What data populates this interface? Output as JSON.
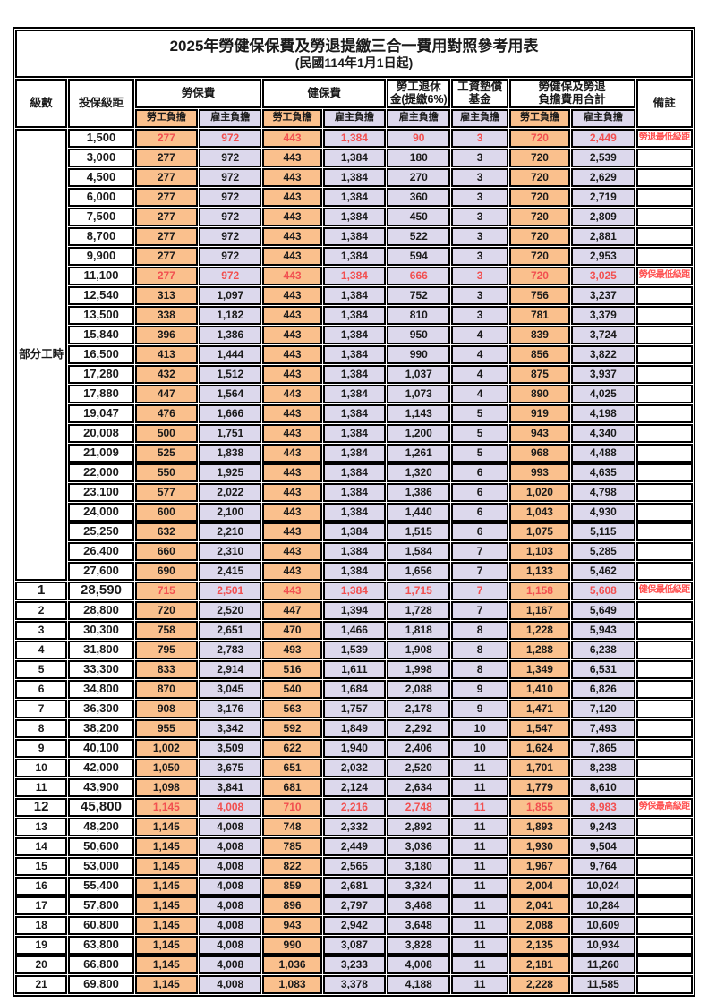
{
  "title": "2025年勞健保保費及勞退提繳三合一費用對照參考用表",
  "subtitle": "(民國114年1月1日起)",
  "columns": {
    "level": "級數",
    "bracket": "投保級距",
    "labor_group": "勞保費",
    "health_group": "健保費",
    "pension_group": [
      "勞工退休",
      "金(提繳6%)"
    ],
    "fund_group": [
      "工資墊償",
      "基金"
    ],
    "total_group": [
      "勞健保及勞退",
      "負擔費用合計"
    ],
    "remark": "備註",
    "employee": "勞工負擔",
    "employer": "雇主負擔"
  },
  "part_time_label": "部分工時",
  "colors": {
    "employee_bg": "#FAC08D",
    "employer_bg": "#DCD8EC",
    "highlight_text": "#F25050",
    "remark_text": "#FF5252",
    "border": "#000000"
  },
  "rows": [
    {
      "level": "",
      "bracket": "1,500",
      "fees": [
        "277",
        "972",
        "443",
        "1,384",
        "90",
        "3",
        "720",
        "2,449"
      ],
      "remark": "勞退最低級距",
      "highlight": true,
      "big": false
    },
    {
      "level": "",
      "bracket": "3,000",
      "fees": [
        "277",
        "972",
        "443",
        "1,384",
        "180",
        "3",
        "720",
        "2,539"
      ],
      "remark": "",
      "highlight": false,
      "big": false
    },
    {
      "level": "",
      "bracket": "4,500",
      "fees": [
        "277",
        "972",
        "443",
        "1,384",
        "270",
        "3",
        "720",
        "2,629"
      ],
      "remark": "",
      "highlight": false,
      "big": false
    },
    {
      "level": "",
      "bracket": "6,000",
      "fees": [
        "277",
        "972",
        "443",
        "1,384",
        "360",
        "3",
        "720",
        "2,719"
      ],
      "remark": "",
      "highlight": false,
      "big": false
    },
    {
      "level": "",
      "bracket": "7,500",
      "fees": [
        "277",
        "972",
        "443",
        "1,384",
        "450",
        "3",
        "720",
        "2,809"
      ],
      "remark": "",
      "highlight": false,
      "big": false
    },
    {
      "level": "",
      "bracket": "8,700",
      "fees": [
        "277",
        "972",
        "443",
        "1,384",
        "522",
        "3",
        "720",
        "2,881"
      ],
      "remark": "",
      "highlight": false,
      "big": false
    },
    {
      "level": "",
      "bracket": "9,900",
      "fees": [
        "277",
        "972",
        "443",
        "1,384",
        "594",
        "3",
        "720",
        "2,953"
      ],
      "remark": "",
      "highlight": false,
      "big": false
    },
    {
      "level": "",
      "bracket": "11,100",
      "fees": [
        "277",
        "972",
        "443",
        "1,384",
        "666",
        "3",
        "720",
        "3,025"
      ],
      "remark": "勞保最低級距",
      "highlight": true,
      "big": false
    },
    {
      "level": "",
      "bracket": "12,540",
      "fees": [
        "313",
        "1,097",
        "443",
        "1,384",
        "752",
        "3",
        "756",
        "3,237"
      ],
      "remark": "",
      "highlight": false,
      "big": false
    },
    {
      "level": "",
      "bracket": "13,500",
      "fees": [
        "338",
        "1,182",
        "443",
        "1,384",
        "810",
        "3",
        "781",
        "3,379"
      ],
      "remark": "",
      "highlight": false,
      "big": false
    },
    {
      "level": "",
      "bracket": "15,840",
      "fees": [
        "396",
        "1,386",
        "443",
        "1,384",
        "950",
        "4",
        "839",
        "3,724"
      ],
      "remark": "",
      "highlight": false,
      "big": false
    },
    {
      "level": "",
      "bracket": "16,500",
      "fees": [
        "413",
        "1,444",
        "443",
        "1,384",
        "990",
        "4",
        "856",
        "3,822"
      ],
      "remark": "",
      "highlight": false,
      "big": false
    },
    {
      "level": "",
      "bracket": "17,280",
      "fees": [
        "432",
        "1,512",
        "443",
        "1,384",
        "1,037",
        "4",
        "875",
        "3,937"
      ],
      "remark": "",
      "highlight": false,
      "big": false
    },
    {
      "level": "",
      "bracket": "17,880",
      "fees": [
        "447",
        "1,564",
        "443",
        "1,384",
        "1,073",
        "4",
        "890",
        "4,025"
      ],
      "remark": "",
      "highlight": false,
      "big": false
    },
    {
      "level": "",
      "bracket": "19,047",
      "fees": [
        "476",
        "1,666",
        "443",
        "1,384",
        "1,143",
        "5",
        "919",
        "4,198"
      ],
      "remark": "",
      "highlight": false,
      "big": false
    },
    {
      "level": "",
      "bracket": "20,008",
      "fees": [
        "500",
        "1,751",
        "443",
        "1,384",
        "1,200",
        "5",
        "943",
        "4,340"
      ],
      "remark": "",
      "highlight": false,
      "big": false
    },
    {
      "level": "",
      "bracket": "21,009",
      "fees": [
        "525",
        "1,838",
        "443",
        "1,384",
        "1,261",
        "5",
        "968",
        "4,488"
      ],
      "remark": "",
      "highlight": false,
      "big": false
    },
    {
      "level": "",
      "bracket": "22,000",
      "fees": [
        "550",
        "1,925",
        "443",
        "1,384",
        "1,320",
        "6",
        "993",
        "4,635"
      ],
      "remark": "",
      "highlight": false,
      "big": false
    },
    {
      "level": "",
      "bracket": "23,100",
      "fees": [
        "577",
        "2,022",
        "443",
        "1,384",
        "1,386",
        "6",
        "1,020",
        "4,798"
      ],
      "remark": "",
      "highlight": false,
      "big": false
    },
    {
      "level": "",
      "bracket": "24,000",
      "fees": [
        "600",
        "2,100",
        "443",
        "1,384",
        "1,440",
        "6",
        "1,043",
        "4,930"
      ],
      "remark": "",
      "highlight": false,
      "big": false
    },
    {
      "level": "",
      "bracket": "25,250",
      "fees": [
        "632",
        "2,210",
        "443",
        "1,384",
        "1,515",
        "6",
        "1,075",
        "5,115"
      ],
      "remark": "",
      "highlight": false,
      "big": false
    },
    {
      "level": "",
      "bracket": "26,400",
      "fees": [
        "660",
        "2,310",
        "443",
        "1,384",
        "1,584",
        "7",
        "1,103",
        "5,285"
      ],
      "remark": "",
      "highlight": false,
      "big": false
    },
    {
      "level": "",
      "bracket": "27,600",
      "fees": [
        "690",
        "2,415",
        "443",
        "1,384",
        "1,656",
        "7",
        "1,133",
        "5,462"
      ],
      "remark": "",
      "highlight": false,
      "big": false
    },
    {
      "level": "1",
      "bracket": "28,590",
      "fees": [
        "715",
        "2,501",
        "443",
        "1,384",
        "1,715",
        "7",
        "1,158",
        "5,608"
      ],
      "remark": "健保最低級距",
      "highlight": true,
      "big": true
    },
    {
      "level": "2",
      "bracket": "28,800",
      "fees": [
        "720",
        "2,520",
        "447",
        "1,394",
        "1,728",
        "7",
        "1,167",
        "5,649"
      ],
      "remark": "",
      "highlight": false,
      "big": false
    },
    {
      "level": "3",
      "bracket": "30,300",
      "fees": [
        "758",
        "2,651",
        "470",
        "1,466",
        "1,818",
        "8",
        "1,228",
        "5,943"
      ],
      "remark": "",
      "highlight": false,
      "big": false
    },
    {
      "level": "4",
      "bracket": "31,800",
      "fees": [
        "795",
        "2,783",
        "493",
        "1,539",
        "1,908",
        "8",
        "1,288",
        "6,238"
      ],
      "remark": "",
      "highlight": false,
      "big": false
    },
    {
      "level": "5",
      "bracket": "33,300",
      "fees": [
        "833",
        "2,914",
        "516",
        "1,611",
        "1,998",
        "8",
        "1,349",
        "6,531"
      ],
      "remark": "",
      "highlight": false,
      "big": false
    },
    {
      "level": "6",
      "bracket": "34,800",
      "fees": [
        "870",
        "3,045",
        "540",
        "1,684",
        "2,088",
        "9",
        "1,410",
        "6,826"
      ],
      "remark": "",
      "highlight": false,
      "big": false
    },
    {
      "level": "7",
      "bracket": "36,300",
      "fees": [
        "908",
        "3,176",
        "563",
        "1,757",
        "2,178",
        "9",
        "1,471",
        "7,120"
      ],
      "remark": "",
      "highlight": false,
      "big": false
    },
    {
      "level": "8",
      "bracket": "38,200",
      "fees": [
        "955",
        "3,342",
        "592",
        "1,849",
        "2,292",
        "10",
        "1,547",
        "7,493"
      ],
      "remark": "",
      "highlight": false,
      "big": false
    },
    {
      "level": "9",
      "bracket": "40,100",
      "fees": [
        "1,002",
        "3,509",
        "622",
        "1,940",
        "2,406",
        "10",
        "1,624",
        "7,865"
      ],
      "remark": "",
      "highlight": false,
      "big": false
    },
    {
      "level": "10",
      "bracket": "42,000",
      "fees": [
        "1,050",
        "3,675",
        "651",
        "2,032",
        "2,520",
        "11",
        "1,701",
        "8,238"
      ],
      "remark": "",
      "highlight": false,
      "big": false
    },
    {
      "level": "11",
      "bracket": "43,900",
      "fees": [
        "1,098",
        "3,841",
        "681",
        "2,124",
        "2,634",
        "11",
        "1,779",
        "8,610"
      ],
      "remark": "",
      "highlight": false,
      "big": false
    },
    {
      "level": "12",
      "bracket": "45,800",
      "fees": [
        "1,145",
        "4,008",
        "710",
        "2,216",
        "2,748",
        "11",
        "1,855",
        "8,983"
      ],
      "remark": "勞保最高級距",
      "highlight": true,
      "big": true
    },
    {
      "level": "13",
      "bracket": "48,200",
      "fees": [
        "1,145",
        "4,008",
        "748",
        "2,332",
        "2,892",
        "11",
        "1,893",
        "9,243"
      ],
      "remark": "",
      "highlight": false,
      "big": false
    },
    {
      "level": "14",
      "bracket": "50,600",
      "fees": [
        "1,145",
        "4,008",
        "785",
        "2,449",
        "3,036",
        "11",
        "1,930",
        "9,504"
      ],
      "remark": "",
      "highlight": false,
      "big": false
    },
    {
      "level": "15",
      "bracket": "53,000",
      "fees": [
        "1,145",
        "4,008",
        "822",
        "2,565",
        "3,180",
        "11",
        "1,967",
        "9,764"
      ],
      "remark": "",
      "highlight": false,
      "big": false
    },
    {
      "level": "16",
      "bracket": "55,400",
      "fees": [
        "1,145",
        "4,008",
        "859",
        "2,681",
        "3,324",
        "11",
        "2,004",
        "10,024"
      ],
      "remark": "",
      "highlight": false,
      "big": false
    },
    {
      "level": "17",
      "bracket": "57,800",
      "fees": [
        "1,145",
        "4,008",
        "896",
        "2,797",
        "3,468",
        "11",
        "2,041",
        "10,284"
      ],
      "remark": "",
      "highlight": false,
      "big": false
    },
    {
      "level": "18",
      "bracket": "60,800",
      "fees": [
        "1,145",
        "4,008",
        "943",
        "2,942",
        "3,648",
        "11",
        "2,088",
        "10,609"
      ],
      "remark": "",
      "highlight": false,
      "big": false
    },
    {
      "level": "19",
      "bracket": "63,800",
      "fees": [
        "1,145",
        "4,008",
        "990",
        "3,087",
        "3,828",
        "11",
        "2,135",
        "10,934"
      ],
      "remark": "",
      "highlight": false,
      "big": false
    },
    {
      "level": "20",
      "bracket": "66,800",
      "fees": [
        "1,145",
        "4,008",
        "1,036",
        "3,233",
        "4,008",
        "11",
        "2,181",
        "11,260"
      ],
      "remark": "",
      "highlight": false,
      "big": false
    },
    {
      "level": "21",
      "bracket": "69,800",
      "fees": [
        "1,145",
        "4,008",
        "1,083",
        "3,378",
        "4,188",
        "11",
        "2,228",
        "11,585"
      ],
      "remark": "",
      "highlight": false,
      "big": false
    }
  ]
}
